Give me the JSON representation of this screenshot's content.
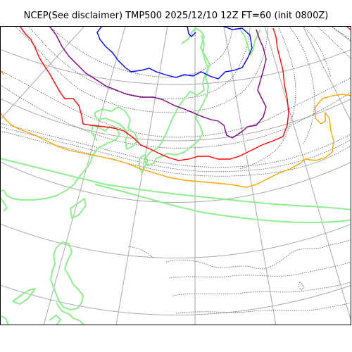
{
  "figure": {
    "title": "NCEP(See disclaimer) TMP500 2025/12/10 12Z FT=60 (init 0800Z)"
  },
  "map": {
    "product": "TMP500",
    "layers": [
      {
        "name": "graticule",
        "color": "#a9a9a9"
      },
      {
        "name": "coastline",
        "color": "#90ee90"
      },
      {
        "name": "temperature-isotherms",
        "color": "#696969"
      },
      {
        "name": "highlighted-isotherm-blue",
        "color": "#0000ff"
      },
      {
        "name": "highlighted-isotherm-purple",
        "color": "#800080"
      },
      {
        "name": "highlighted-isotherm-red",
        "color": "#ff0000"
      },
      {
        "name": "highlighted-isotherm-orange",
        "color": "#ffa500"
      }
    ]
  }
}
